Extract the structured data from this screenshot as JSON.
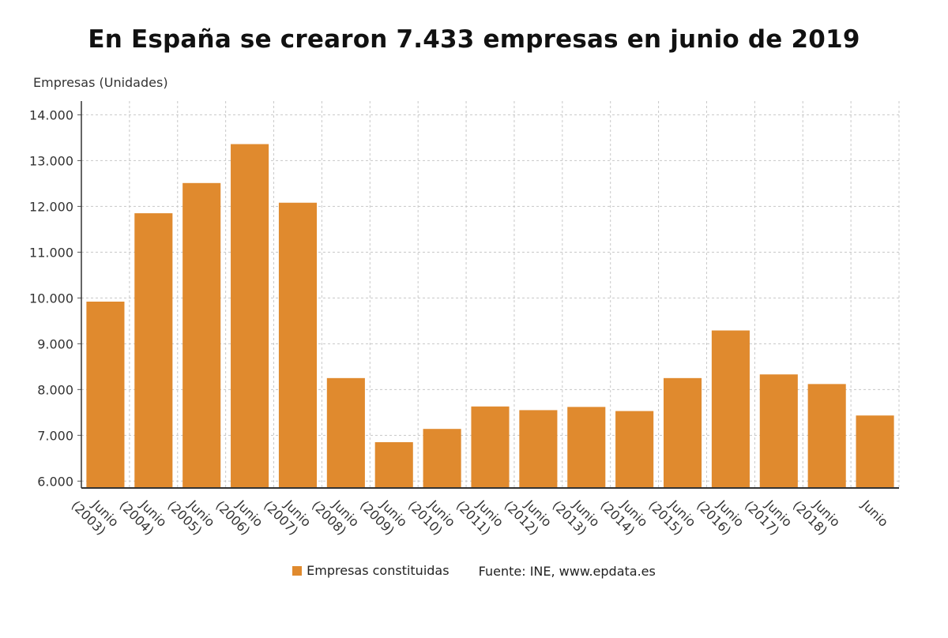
{
  "chart_data": {
    "type": "bar",
    "title": "En España se crearon 7.433 empresas en junio de 2019",
    "ylabel": "Empresas (Unidades)",
    "xlabel": "",
    "ylim": [
      5850,
      14300
    ],
    "yticks": [
      6000,
      7000,
      8000,
      9000,
      10000,
      11000,
      12000,
      13000,
      14000
    ],
    "ytick_labels": [
      "6.000",
      "7.000",
      "8.000",
      "9.000",
      "10.000",
      "11.000",
      "12.000",
      "13.000",
      "14.000"
    ],
    "categories": [
      [
        "Junio",
        "(2003)"
      ],
      [
        "Junio",
        "(2004)"
      ],
      [
        "Junio",
        "(2005)"
      ],
      [
        "Junio",
        "(2006)"
      ],
      [
        "Junio",
        "(2007)"
      ],
      [
        "Junio",
        "(2008)"
      ],
      [
        "Junio",
        "(2009)"
      ],
      [
        "Junio",
        "(2010)"
      ],
      [
        "Junio",
        "(2011)"
      ],
      [
        "Junio",
        "(2012)"
      ],
      [
        "Junio",
        "(2013)"
      ],
      [
        "Junio",
        "(2014)"
      ],
      [
        "Junio",
        "(2015)"
      ],
      [
        "Junio",
        "(2016)"
      ],
      [
        "Junio",
        "(2017)"
      ],
      [
        "Junio",
        "(2018)"
      ],
      [
        "Junio"
      ]
    ],
    "series": [
      {
        "name": "Empresas constituidas",
        "color": "#e08a2e",
        "values": [
          9920,
          11850,
          12510,
          13360,
          12080,
          8250,
          6850,
          7140,
          7630,
          7550,
          7620,
          7530,
          8250,
          9290,
          8330,
          8120,
          7433
        ]
      }
    ],
    "grid": true,
    "legend_position": "bottom-center"
  },
  "legend": {
    "series_label": "Empresas constituidas",
    "source": "Fuente: INE, www.epdata.es"
  }
}
